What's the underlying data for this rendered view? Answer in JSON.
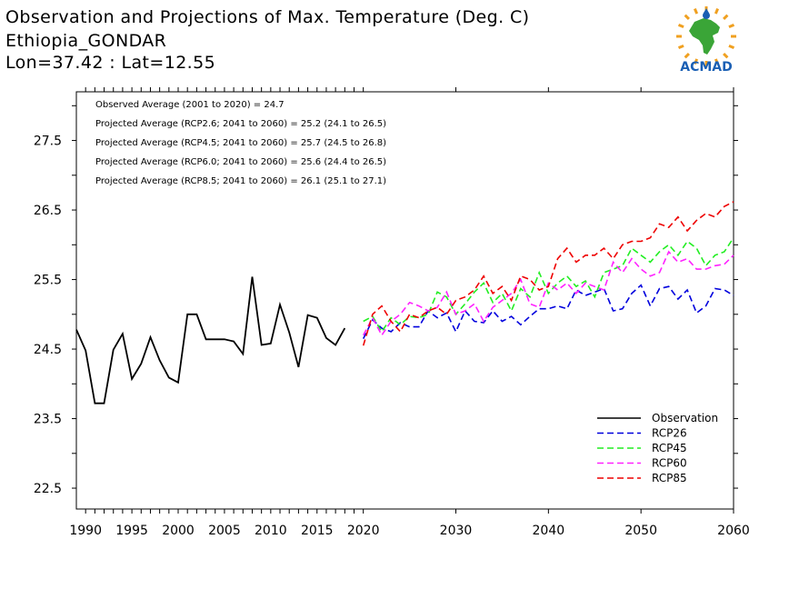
{
  "header": {
    "title": "Observation and Projections of Max. Temperature (Deg. C)",
    "location": "Ethiopia_GONDAR",
    "coords": "Lon=37.42 : Lat=12.55",
    "logo_text": "ACMAD"
  },
  "colors": {
    "observation": "#000000",
    "rcp26": "#0000dd",
    "rcp45": "#22ee22",
    "rcp60": "#ff22ff",
    "rcp85": "#ee0000",
    "logo_blue": "#1a5fb4",
    "logo_green": "#3aa537",
    "logo_orange": "#f0a020"
  },
  "chart_data": {
    "type": "line",
    "title": "Observation and Projections of Max. Temperature (Deg. C)",
    "xlim": [
      1989,
      2060
    ],
    "ylim": [
      22.2,
      28.2
    ],
    "grid": false,
    "legend_position": "bottom-right",
    "y_ticks": [
      "22.5",
      "23.5",
      "24.5",
      "25.5",
      "26.5",
      "27.5"
    ],
    "x_ticks": [
      "1990",
      "1995",
      "2000",
      "2005",
      "2010",
      "2015",
      "2020",
      "2030",
      "2040",
      "2050",
      "2060"
    ],
    "stats": [
      "Observed Average (2001 to 2020) = 24.7",
      "Projected Average (RCP2.6; 2041 to 2060) = 25.2 (24.1 to 26.5)",
      "Projected Average (RCP4.5; 2041 to 2060) = 25.7 (24.5 to 26.8)",
      "Projected Average (RCP6.0; 2041 to 2060) = 25.6 (24.4 to 26.5)",
      "Projected Average (RCP8.5; 2041 to 2060) = 26.1 (25.1 to 27.1)"
    ],
    "series": [
      {
        "name": "Observation",
        "key": "observation",
        "dashed": false,
        "x": [
          1989,
          1990,
          1991,
          1992,
          1993,
          1994,
          1995,
          1996,
          1997,
          1998,
          1999,
          2000,
          2001,
          2002,
          2003,
          2004,
          2005,
          2006,
          2007,
          2008,
          2009,
          2010,
          2011,
          2012,
          2013,
          2014,
          2015,
          2016,
          2017,
          2018,
          2019
        ],
        "values": [
          24.78,
          24.48,
          23.72,
          23.72,
          24.49,
          24.72,
          24.07,
          24.29,
          24.67,
          24.34,
          24.09,
          24.02,
          25.0,
          25.0,
          24.64,
          24.64,
          24.64,
          24.61,
          24.43,
          25.54,
          24.56,
          24.58,
          25.14,
          24.74,
          24.24,
          24.99,
          24.95,
          24.66,
          24.56,
          24.8,
          null
        ]
      },
      {
        "name": "RCP26",
        "key": "rcp26",
        "dashed": true,
        "x": [
          2020,
          2021,
          2022,
          2023,
          2024,
          2025,
          2026,
          2027,
          2028,
          2029,
          2030,
          2031,
          2032,
          2033,
          2034,
          2035,
          2036,
          2037,
          2038,
          2039,
          2040,
          2041,
          2042,
          2043,
          2044,
          2045,
          2046,
          2047,
          2048,
          2049,
          2050,
          2051,
          2052,
          2053,
          2054,
          2055,
          2056,
          2057,
          2058,
          2059,
          2060
        ],
        "values": [
          24.65,
          24.92,
          24.8,
          24.75,
          24.88,
          24.82,
          24.82,
          25.05,
          24.95,
          25.02,
          24.75,
          25.05,
          24.9,
          24.88,
          25.05,
          24.9,
          24.97,
          24.85,
          24.97,
          25.08,
          25.08,
          25.12,
          25.08,
          25.35,
          25.27,
          25.32,
          25.37,
          25.05,
          25.08,
          25.3,
          25.42,
          25.12,
          25.37,
          25.4,
          25.22,
          25.35,
          25.02,
          25.12,
          25.37,
          25.35,
          25.27
        ]
      },
      {
        "name": "RCP45",
        "key": "rcp45",
        "dashed": true,
        "x": [
          2020,
          2021,
          2022,
          2023,
          2024,
          2025,
          2026,
          2027,
          2028,
          2029,
          2030,
          2031,
          2032,
          2033,
          2034,
          2035,
          2036,
          2037,
          2038,
          2039,
          2040,
          2041,
          2042,
          2043,
          2044,
          2045,
          2046,
          2047,
          2048,
          2049,
          2050,
          2051,
          2052,
          2053,
          2054,
          2055,
          2056,
          2057,
          2058,
          2059,
          2060
        ],
        "values": [
          24.9,
          24.97,
          24.75,
          24.95,
          24.85,
          24.97,
          24.95,
          25.0,
          25.32,
          25.25,
          25.0,
          25.15,
          25.32,
          25.45,
          25.17,
          25.3,
          25.05,
          25.37,
          25.25,
          25.6,
          25.3,
          25.45,
          25.55,
          25.4,
          25.48,
          25.25,
          25.6,
          25.65,
          25.7,
          25.95,
          25.85,
          25.75,
          25.9,
          26.0,
          25.85,
          26.05,
          25.95,
          25.7,
          25.85,
          25.9,
          26.1
        ]
      },
      {
        "name": "RCP60",
        "key": "rcp60",
        "dashed": true,
        "x": [
          2020,
          2021,
          2022,
          2023,
          2024,
          2025,
          2026,
          2027,
          2028,
          2029,
          2030,
          2031,
          2032,
          2033,
          2034,
          2035,
          2036,
          2037,
          2038,
          2039,
          2040,
          2041,
          2042,
          2043,
          2044,
          2045,
          2046,
          2047,
          2048,
          2049,
          2050,
          2051,
          2052,
          2053,
          2054,
          2055,
          2056,
          2057,
          2058,
          2059,
          2060
        ],
        "values": [
          24.7,
          24.95,
          24.7,
          24.9,
          25.0,
          25.17,
          25.12,
          25.05,
          25.1,
          25.32,
          25.0,
          25.05,
          25.15,
          24.9,
          25.1,
          25.2,
          25.3,
          25.5,
          25.15,
          25.1,
          25.45,
          25.35,
          25.45,
          25.3,
          25.45,
          25.4,
          25.35,
          25.75,
          25.6,
          25.8,
          25.65,
          25.55,
          25.6,
          25.9,
          25.75,
          25.8,
          25.65,
          25.65,
          25.7,
          25.72,
          25.85
        ]
      },
      {
        "name": "RCP85",
        "key": "rcp85",
        "dashed": true,
        "x": [
          2020,
          2021,
          2022,
          2023,
          2024,
          2025,
          2026,
          2027,
          2028,
          2029,
          2030,
          2031,
          2032,
          2033,
          2034,
          2035,
          2036,
          2037,
          2038,
          2039,
          2040,
          2041,
          2042,
          2043,
          2044,
          2045,
          2046,
          2047,
          2048,
          2049,
          2050,
          2051,
          2052,
          2053,
          2054,
          2055,
          2056,
          2057,
          2058,
          2059,
          2060
        ],
        "values": [
          24.55,
          25.0,
          25.12,
          24.9,
          24.75,
          25.0,
          24.95,
          25.05,
          25.1,
          25.0,
          25.2,
          25.25,
          25.35,
          25.55,
          25.3,
          25.4,
          25.2,
          25.55,
          25.5,
          25.35,
          25.4,
          25.8,
          25.95,
          25.75,
          25.85,
          25.85,
          25.95,
          25.8,
          26.0,
          26.05,
          26.05,
          26.1,
          26.3,
          26.25,
          26.4,
          26.2,
          26.35,
          26.45,
          26.4,
          26.55,
          26.62
        ]
      }
    ]
  }
}
